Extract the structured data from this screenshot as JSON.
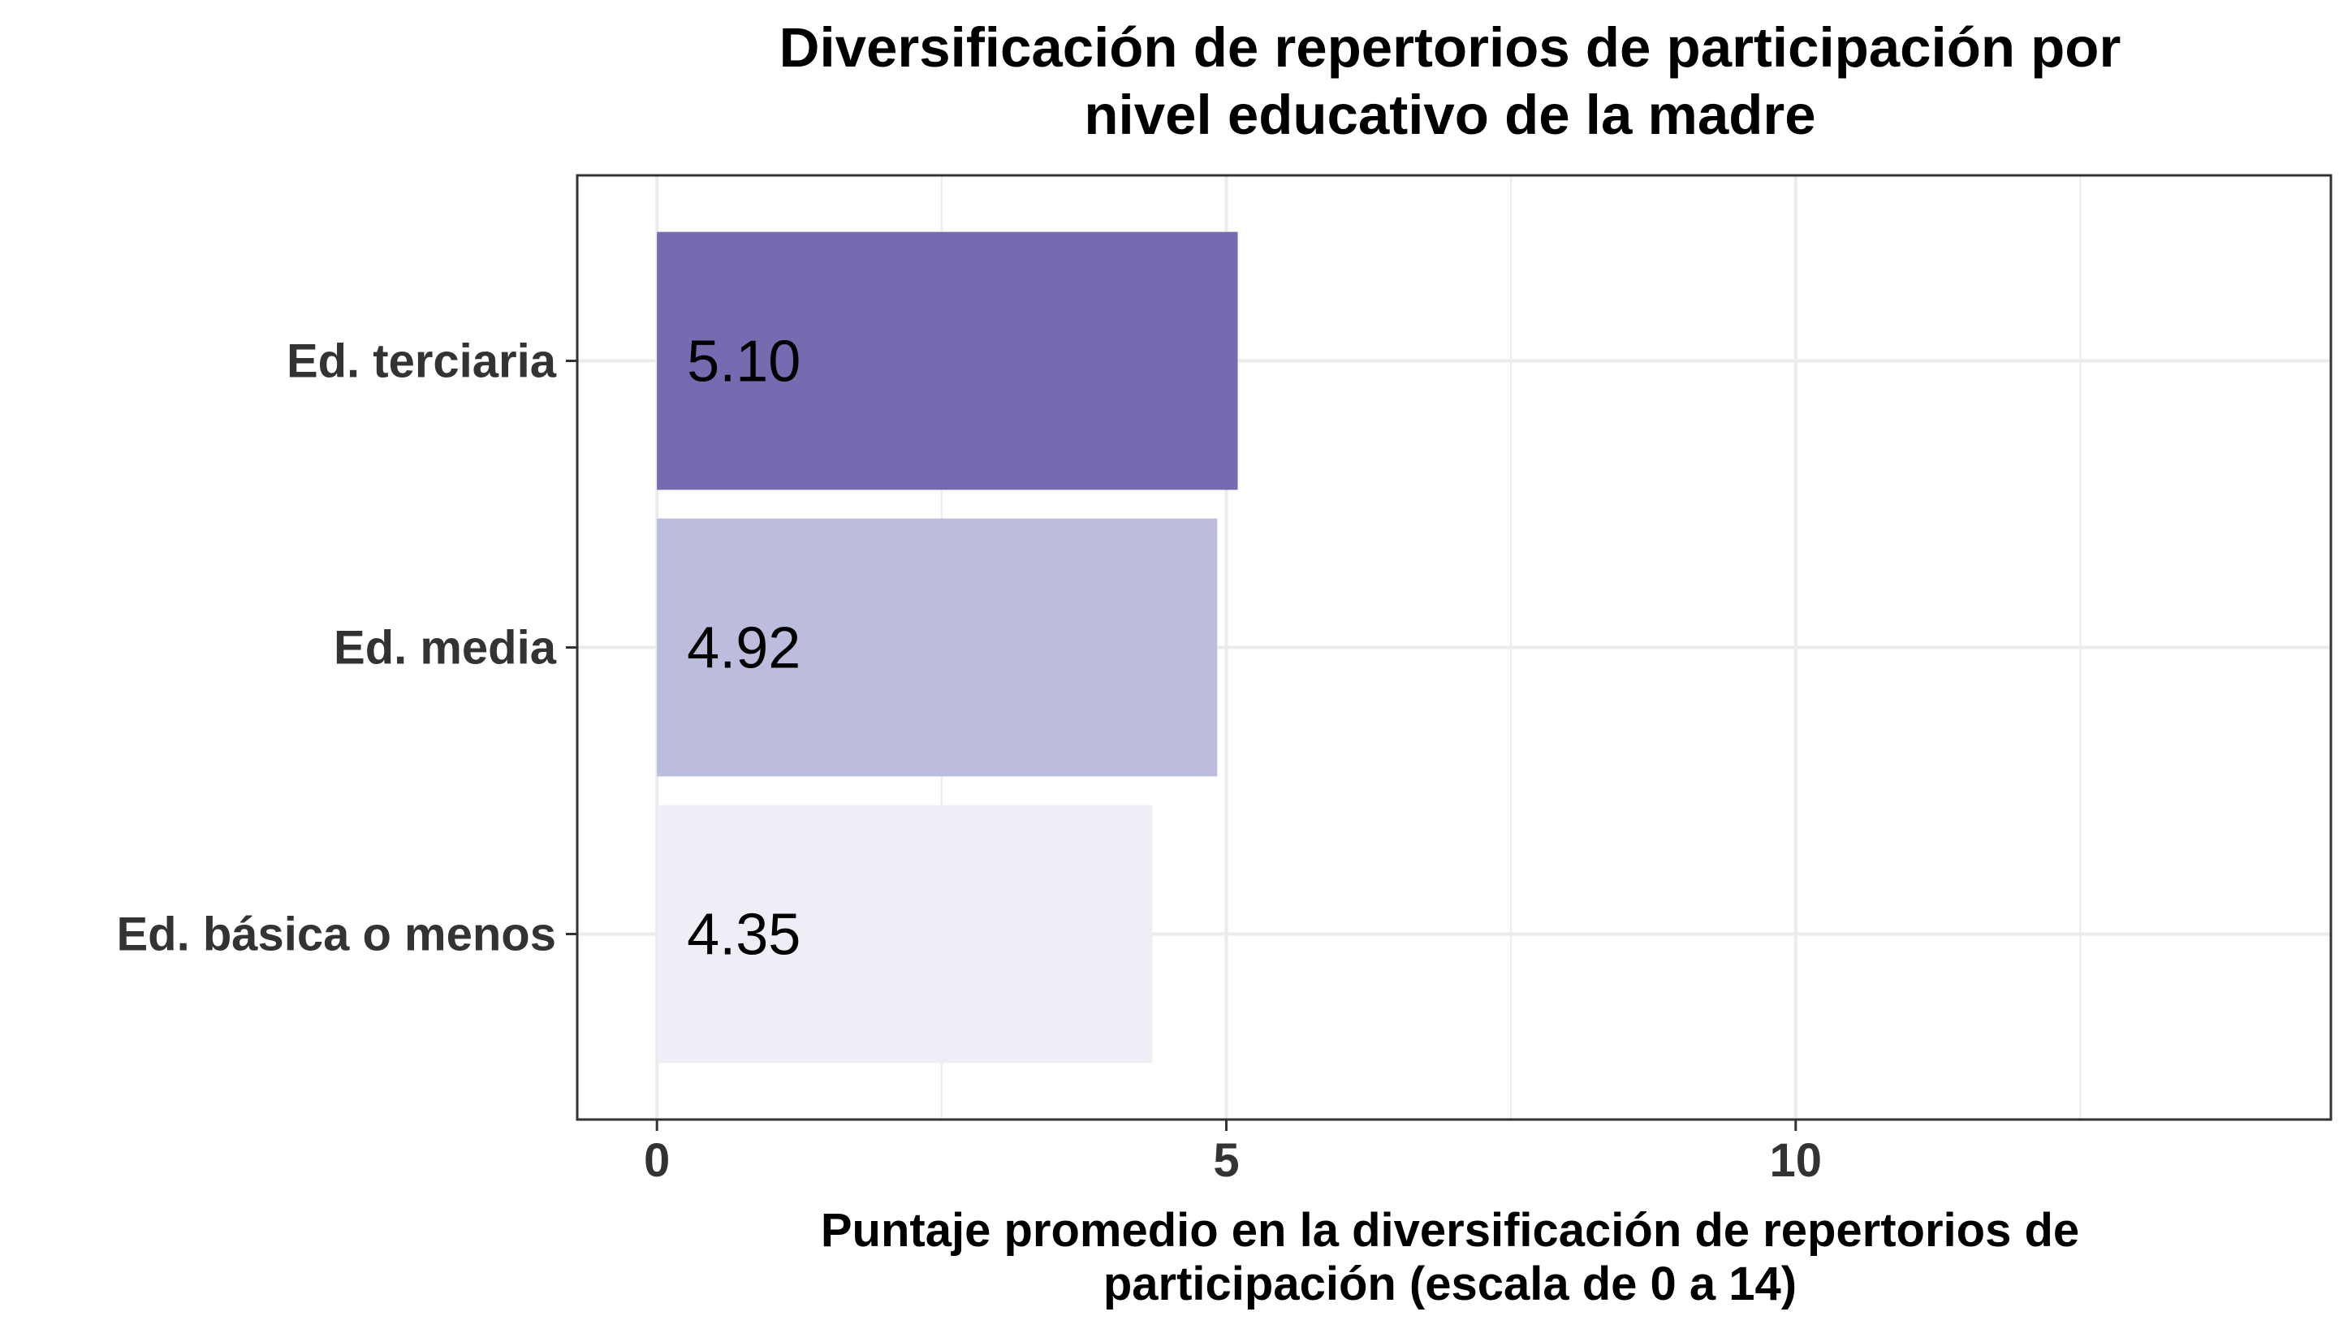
{
  "chart_data": {
    "type": "bar",
    "orientation": "horizontal",
    "title_lines": [
      "Diversificación de repertorios de participación por",
      "nivel educativo de la madre"
    ],
    "xlabel_lines": [
      "Puntaje promedio en la diversificación de repertorios de",
      "participación (escala de 0 a 14)"
    ],
    "ylabel": "",
    "categories": [
      "Ed. terciaria",
      "Ed. media",
      "Ed. básica o menos"
    ],
    "values": [
      5.1,
      4.92,
      4.35
    ],
    "data_labels": [
      "5.10",
      "4.92",
      "4.35"
    ],
    "bar_colors": [
      "#756bb1",
      "#bcbddc",
      "#efedf5"
    ],
    "xlim": [
      -0.7,
      14.7
    ],
    "x_ticks": [
      0,
      5,
      10
    ],
    "x_tick_labels": [
      "0",
      "5",
      "10"
    ],
    "x_minor_gridlines": [
      2.5,
      7.5,
      12.5
    ],
    "grid": true,
    "legend": "none"
  }
}
